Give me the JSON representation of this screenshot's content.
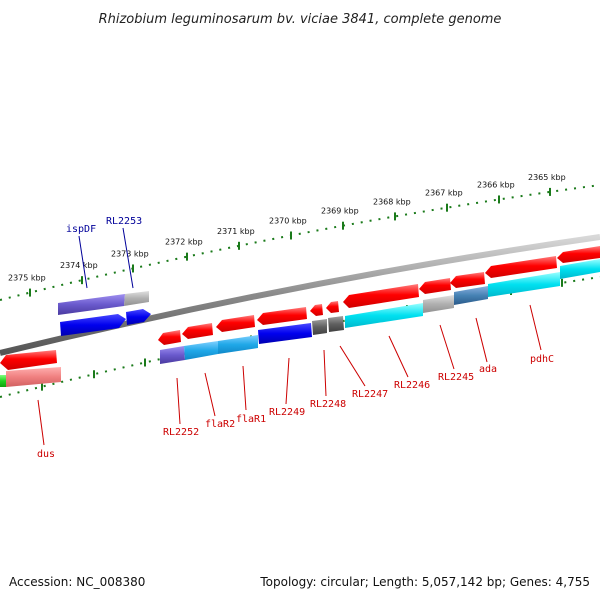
{
  "title": "Rhizobium leguminosarum bv. viciae 3841, complete genome",
  "footer": {
    "accession": "Accession: NC_008380",
    "summary": "Topology: circular; Length: 5,057,142 bp; Genes: 4,755"
  },
  "ticks": [
    "2375 kbp",
    "2374 kbp",
    "2373 kbp",
    "2372 kbp",
    "2371 kbp",
    "2370 kbp",
    "2369 kbp",
    "2368 kbp",
    "2367 kbp",
    "2366 kbp",
    "2365 kbp"
  ],
  "genes": [
    {
      "name": "ispDF",
      "strand": "top",
      "color": "#000099"
    },
    {
      "name": "RL2253",
      "strand": "top",
      "color": "#000099"
    },
    {
      "name": "dus",
      "strand": "bottom",
      "color": "#cc0000"
    },
    {
      "name": "RL2252",
      "strand": "bottom",
      "color": "#cc0000"
    },
    {
      "name": "flaR2",
      "strand": "bottom",
      "color": "#cc0000"
    },
    {
      "name": "flaR1",
      "strand": "bottom",
      "color": "#cc0000"
    },
    {
      "name": "RL2249",
      "strand": "bottom",
      "color": "#cc0000"
    },
    {
      "name": "RL2248",
      "strand": "bottom",
      "color": "#cc0000"
    },
    {
      "name": "RL2247",
      "strand": "bottom",
      "color": "#cc0000"
    },
    {
      "name": "RL2246",
      "strand": "bottom",
      "color": "#cc0000"
    },
    {
      "name": "RL2245",
      "strand": "bottom",
      "color": "#cc0000"
    },
    {
      "name": "ada",
      "strand": "bottom",
      "color": "#cc0000"
    },
    {
      "name": "pdhC",
      "strand": "bottom",
      "color": "#cc0000"
    }
  ],
  "colors": {
    "backbone": "#8a8a8a",
    "tick": "#1a7a1a",
    "forward_cds": "#ff0000",
    "reverse_cds": "#ff0000"
  }
}
